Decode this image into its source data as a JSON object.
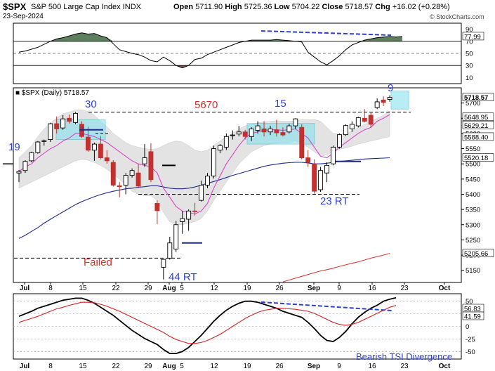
{
  "header": {
    "symbol": "$SPX",
    "name": "S&P 500 Large Cap Index",
    "exchange": "INDX",
    "date": "23-Sep-2024",
    "open_label": "Open",
    "open": "5711.90",
    "high_label": "High",
    "high": "5725.36",
    "low_label": "Low",
    "low": "5704.22",
    "close_label": "Close",
    "close": "5718.57",
    "chg_label": "Chg",
    "chg": "+16.02 (+0.28%)",
    "watermark": "© StockCharts.com"
  },
  "colors": {
    "up": "#000000",
    "down": "#c0312f",
    "ma_pink": "#d946c9",
    "ma_navy": "#1f2a8f",
    "ma_red": "#d93a3a",
    "band_fill": "#d8d8d8",
    "highlight": "#7fe0ee",
    "annot_blue": "#2f3fd4",
    "annot_red": "#d03030",
    "rsi_fill": "#5e7f5e",
    "rsi_low_fill": "#8c4a4a",
    "tsi_black": "#000000",
    "tsi_red": "#d92020"
  },
  "chart_data": [
    {
      "type": "line",
      "panel": "RSI",
      "ylim": [
        0,
        100
      ],
      "y_ticks": [
        "90",
        "70",
        "50",
        "30",
        "10"
      ],
      "levels": [
        70,
        30
      ],
      "last_value_label": "77.99",
      "x": [
        1,
        2,
        3,
        4,
        5,
        6,
        7,
        8,
        9,
        10,
        11,
        12,
        13,
        14,
        15,
        16,
        17,
        18,
        19,
        20,
        21,
        22,
        23,
        24,
        25,
        26,
        27,
        28,
        29,
        30,
        31,
        32,
        33,
        34,
        35,
        36,
        37,
        38,
        39,
        40,
        41,
        42,
        43,
        44,
        45,
        46,
        47,
        48,
        49,
        50,
        51,
        52,
        53,
        54,
        55,
        56,
        57,
        58,
        59,
        60,
        61,
        62
      ],
      "values": [
        52,
        54,
        57,
        60,
        65,
        70,
        74,
        76,
        79,
        82,
        84,
        82,
        83,
        79,
        76,
        66,
        56,
        53,
        50,
        48,
        44,
        38,
        36,
        44,
        38,
        30,
        26,
        30,
        40,
        42,
        48,
        52,
        56,
        60,
        64,
        68,
        70,
        72,
        72,
        72,
        72,
        73,
        72,
        71,
        70,
        69,
        52,
        44,
        36,
        31,
        38,
        46,
        56,
        64,
        68,
        72,
        74,
        76,
        77,
        78,
        77,
        78
      ]
    },
    {
      "type": "candlestick",
      "panel": "price",
      "series_label": "$SPX (Daily)",
      "series_value": "5718.57",
      "ylim": [
        5110,
        5750
      ],
      "y_ticks": [
        5150,
        5200,
        5250,
        5300,
        5350,
        5400,
        5450,
        5500,
        5550,
        5600,
        5650,
        5700
      ],
      "x_ticks": [
        "Jul",
        "8",
        "15",
        "22",
        "29",
        "Aug",
        "5",
        "12",
        "19",
        "26",
        "Sep",
        "9",
        "16",
        "23",
        "Oct"
      ],
      "right_labels": [
        "5718.57",
        "5648.95",
        "5629.21",
        "5588.40",
        "5520.18",
        "5205.66"
      ],
      "candles": [
        {
          "o": 5470,
          "h": 5480,
          "l": 5440,
          "c": 5475
        },
        {
          "o": 5478,
          "h": 5512,
          "l": 5470,
          "c": 5508
        },
        {
          "o": 5510,
          "h": 5540,
          "l": 5505,
          "c": 5537
        },
        {
          "o": 5537,
          "h": 5575,
          "l": 5533,
          "c": 5572
        },
        {
          "o": 5574,
          "h": 5580,
          "l": 5560,
          "c": 5576
        },
        {
          "o": 5580,
          "h": 5635,
          "l": 5572,
          "c": 5632
        },
        {
          "o": 5632,
          "h": 5656,
          "l": 5600,
          "c": 5615
        },
        {
          "o": 5618,
          "h": 5660,
          "l": 5612,
          "c": 5648
        },
        {
          "o": 5650,
          "h": 5662,
          "l": 5632,
          "c": 5640
        },
        {
          "o": 5636,
          "h": 5670,
          "l": 5630,
          "c": 5666
        },
        {
          "o": 5630,
          "h": 5640,
          "l": 5585,
          "c": 5590
        },
        {
          "o": 5588,
          "h": 5622,
          "l": 5540,
          "c": 5545
        },
        {
          "o": 5545,
          "h": 5570,
          "l": 5510,
          "c": 5565
        },
        {
          "o": 5565,
          "h": 5592,
          "l": 5515,
          "c": 5520
        },
        {
          "o": 5520,
          "h": 5545,
          "l": 5500,
          "c": 5510
        },
        {
          "o": 5505,
          "h": 5512,
          "l": 5425,
          "c": 5430
        },
        {
          "o": 5428,
          "h": 5440,
          "l": 5390,
          "c": 5425
        },
        {
          "o": 5430,
          "h": 5470,
          "l": 5400,
          "c": 5462
        },
        {
          "o": 5462,
          "h": 5485,
          "l": 5455,
          "c": 5478
        },
        {
          "o": 5470,
          "h": 5500,
          "l": 5420,
          "c": 5427
        },
        {
          "o": 5500,
          "h": 5565,
          "l": 5490,
          "c": 5520
        },
        {
          "o": 5540,
          "h": 5568,
          "l": 5440,
          "c": 5448
        },
        {
          "o": 5370,
          "h": 5380,
          "l": 5302,
          "c": 5346
        },
        {
          "o": 5160,
          "h": 5185,
          "l": 5120,
          "c": 5186
        },
        {
          "o": 5190,
          "h": 5260,
          "l": 5185,
          "c": 5240
        },
        {
          "o": 5220,
          "h": 5312,
          "l": 5210,
          "c": 5300
        },
        {
          "o": 5310,
          "h": 5345,
          "l": 5270,
          "c": 5320
        },
        {
          "o": 5318,
          "h": 5350,
          "l": 5280,
          "c": 5345
        },
        {
          "o": 5345,
          "h": 5372,
          "l": 5330,
          "c": 5344
        },
        {
          "o": 5380,
          "h": 5445,
          "l": 5376,
          "c": 5430
        },
        {
          "o": 5430,
          "h": 5470,
          "l": 5420,
          "c": 5460
        },
        {
          "o": 5460,
          "h": 5560,
          "l": 5452,
          "c": 5550
        },
        {
          "o": 5545,
          "h": 5565,
          "l": 5535,
          "c": 5560
        },
        {
          "o": 5555,
          "h": 5600,
          "l": 5545,
          "c": 5590
        },
        {
          "o": 5595,
          "h": 5610,
          "l": 5580,
          "c": 5595
        },
        {
          "o": 5598,
          "h": 5625,
          "l": 5590,
          "c": 5605
        },
        {
          "o": 5605,
          "h": 5612,
          "l": 5580,
          "c": 5590
        },
        {
          "o": 5590,
          "h": 5620,
          "l": 5575,
          "c": 5615
        },
        {
          "o": 5610,
          "h": 5640,
          "l": 5600,
          "c": 5625
        },
        {
          "o": 5615,
          "h": 5640,
          "l": 5590,
          "c": 5605
        },
        {
          "o": 5605,
          "h": 5625,
          "l": 5595,
          "c": 5615
        },
        {
          "o": 5612,
          "h": 5645,
          "l": 5590,
          "c": 5602
        },
        {
          "o": 5603,
          "h": 5620,
          "l": 5590,
          "c": 5595
        },
        {
          "o": 5605,
          "h": 5632,
          "l": 5600,
          "c": 5625
        },
        {
          "o": 5625,
          "h": 5650,
          "l": 5615,
          "c": 5648
        },
        {
          "o": 5620,
          "h": 5630,
          "l": 5515,
          "c": 5520
        },
        {
          "o": 5520,
          "h": 5545,
          "l": 5490,
          "c": 5505
        },
        {
          "o": 5500,
          "h": 5515,
          "l": 5402,
          "c": 5410
        },
        {
          "o": 5415,
          "h": 5490,
          "l": 5408,
          "c": 5478
        },
        {
          "o": 5470,
          "h": 5505,
          "l": 5440,
          "c": 5495
        },
        {
          "o": 5500,
          "h": 5560,
          "l": 5495,
          "c": 5555
        },
        {
          "o": 5555,
          "h": 5600,
          "l": 5550,
          "c": 5596
        },
        {
          "o": 5596,
          "h": 5630,
          "l": 5592,
          "c": 5626
        },
        {
          "o": 5615,
          "h": 5640,
          "l": 5605,
          "c": 5630
        },
        {
          "o": 5625,
          "h": 5655,
          "l": 5620,
          "c": 5652
        },
        {
          "o": 5650,
          "h": 5680,
          "l": 5636,
          "c": 5640
        },
        {
          "o": 5660,
          "h": 5670,
          "l": 5620,
          "c": 5630
        },
        {
          "o": 5685,
          "h": 5715,
          "l": 5680,
          "c": 5704
        },
        {
          "o": 5710,
          "h": 5722,
          "l": 5690,
          "c": 5702
        },
        {
          "o": 5711.9,
          "h": 5725.36,
          "l": 5704.22,
          "c": 5718.57
        }
      ],
      "ma_pink": [
        5475,
        5490,
        5500,
        5520,
        5535,
        5550,
        5560,
        5575,
        5585,
        5600,
        5600,
        5595,
        5590,
        5580,
        5570,
        5555,
        5540,
        5525,
        5510,
        5500,
        5495,
        5490,
        5470,
        5420,
        5390,
        5360,
        5345,
        5340,
        5335,
        5345,
        5370,
        5420,
        5460,
        5500,
        5530,
        5560,
        5585,
        5600,
        5605,
        5610,
        5612,
        5612,
        5610,
        5612,
        5615,
        5600,
        5585,
        5555,
        5525,
        5520,
        5535,
        5555,
        5570,
        5585,
        5600,
        5612,
        5620,
        5640,
        5650,
        5662
      ],
      "ma_navy": [
        5255,
        5265,
        5278,
        5290,
        5305,
        5318,
        5330,
        5342,
        5354,
        5366,
        5376,
        5384,
        5392,
        5399,
        5405,
        5410,
        5414,
        5418,
        5420,
        5423,
        5425,
        5428,
        5428,
        5424,
        5420,
        5418,
        5418,
        5420,
        5424,
        5430,
        5436,
        5442,
        5448,
        5455,
        5462,
        5468,
        5474,
        5480,
        5486,
        5492,
        5496,
        5499,
        5502,
        5504,
        5505,
        5505,
        5503,
        5500,
        5500,
        5502,
        5505,
        5508,
        5510,
        5512,
        5514,
        5516,
        5517,
        5518,
        5519,
        5520
      ],
      "ma_red": [
        null,
        null,
        null,
        null,
        null,
        null,
        null,
        null,
        null,
        null,
        null,
        null,
        null,
        null,
        null,
        null,
        null,
        null,
        null,
        null,
        null,
        null,
        null,
        null,
        null,
        null,
        null,
        null,
        null,
        null,
        null,
        null,
        null,
        null,
        null,
        null,
        null,
        null,
        null,
        null,
        null,
        null,
        5112,
        5118,
        5124,
        5130,
        5136,
        5142,
        5148,
        5152,
        5157,
        5163,
        5168,
        5173,
        5178,
        5184,
        5190,
        5195,
        5200,
        5205.66
      ],
      "band_upper": [
        5520,
        5540,
        5560,
        5590,
        5615,
        5635,
        5650,
        5665,
        5670,
        5678,
        5678,
        5672,
        5660,
        5640,
        5622,
        5600,
        5585,
        5570,
        5560,
        5555,
        5550,
        5548,
        5550,
        5560,
        5570,
        5575,
        5572,
        5560,
        5545,
        5540,
        5545,
        5560,
        5575,
        5590,
        5600,
        5615,
        5625,
        5630,
        5635,
        5638,
        5640,
        5642,
        5640,
        5640,
        5642,
        5645,
        5645,
        5646,
        5640,
        5620,
        5600,
        5598,
        5600,
        5608,
        5620,
        5630,
        5640,
        5650,
        5660,
        5675
      ],
      "band_lower": [
        5420,
        5430,
        5440,
        5450,
        5460,
        5470,
        5480,
        5490,
        5500,
        5510,
        5515,
        5512,
        5505,
        5495,
        5482,
        5465,
        5450,
        5430,
        5410,
        5400,
        5395,
        5395,
        5380,
        5340,
        5310,
        5300,
        5300,
        5305,
        5310,
        5320,
        5345,
        5380,
        5410,
        5440,
        5470,
        5500,
        5520,
        5540,
        5550,
        5560,
        5565,
        5568,
        5570,
        5570,
        5575,
        5565,
        5555,
        5540,
        5525,
        5530,
        5540,
        5548,
        5552,
        5558,
        5565,
        5570,
        5575,
        5580,
        5585,
        5590
      ],
      "annotations": [
        "19",
        "30",
        "5670",
        "15",
        "9",
        "Failed",
        "44 RT",
        "23 RT"
      ]
    },
    {
      "type": "line",
      "panel": "TSI",
      "ylim": [
        -65,
        65
      ],
      "y_ticks": [
        "50",
        "25",
        "0",
        "-25",
        "-50"
      ],
      "last_value_labels": [
        "56.83",
        "41.59"
      ],
      "note": "Bearish TSI Divergence",
      "series": [
        {
          "name": "TSI",
          "values": [
            20,
            25,
            30,
            36,
            40,
            44,
            48,
            52,
            54,
            56,
            56,
            52,
            46,
            38,
            30,
            22,
            12,
            2,
            -8,
            -16,
            -24,
            -30,
            -36,
            -46,
            -54,
            -54,
            -50,
            -42,
            -30,
            -18,
            -4,
            10,
            22,
            32,
            40,
            46,
            50,
            50,
            48,
            44,
            40,
            36,
            30,
            26,
            22,
            18,
            8,
            -4,
            -18,
            -28,
            -30,
            -22,
            -10,
            5,
            18,
            28,
            36,
            42,
            50,
            54,
            56.83
          ]
        },
        {
          "name": "Signal",
          "values": [
            8,
            12,
            16,
            20,
            25,
            30,
            35,
            38,
            42,
            45,
            48,
            48,
            47,
            44,
            40,
            35,
            30,
            24,
            18,
            12,
            6,
            0,
            -6,
            -12,
            -20,
            -26,
            -30,
            -34,
            -34,
            -32,
            -28,
            -22,
            -16,
            -8,
            0,
            8,
            16,
            22,
            28,
            32,
            34,
            36,
            36,
            35,
            34,
            32,
            30,
            26,
            20,
            14,
            8,
            4,
            2,
            4,
            8,
            14,
            20,
            26,
            32,
            38,
            41.59
          ]
        }
      ]
    }
  ],
  "annotations": {
    "n19": "19",
    "n30": "30",
    "n5670": "5670",
    "n15": "15",
    "n9": "9",
    "failed": "Failed",
    "rt44": "44 RT",
    "rt23": "23 RT"
  }
}
